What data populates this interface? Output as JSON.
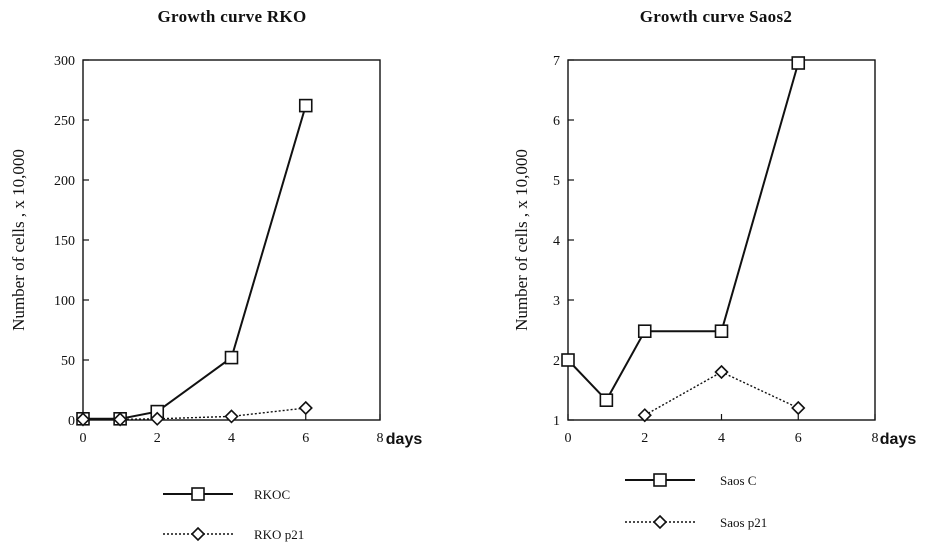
{
  "chart_data": [
    {
      "type": "line",
      "title": "Growth curve RKO",
      "xlabel": "days",
      "ylabel": "Number of cells , x 10,000",
      "xlim": [
        0,
        8
      ],
      "ylim": [
        0,
        300
      ],
      "xticks": [
        0,
        2,
        4,
        6,
        8
      ],
      "yticks": [
        0,
        50,
        100,
        150,
        200,
        250,
        300
      ],
      "grid": false,
      "legend_position": "bottom",
      "series": [
        {
          "name": "RKOC",
          "marker": "square",
          "line": "solid",
          "color": "#111111",
          "x": [
            0,
            1,
            2,
            4,
            6
          ],
          "y": [
            1,
            1,
            7,
            52,
            262
          ]
        },
        {
          "name": "RKO p21",
          "marker": "diamond",
          "line": "dotted",
          "color": "#111111",
          "x": [
            0,
            1,
            2,
            4,
            6
          ],
          "y": [
            0.5,
            0.5,
            1,
            3,
            10
          ]
        }
      ]
    },
    {
      "type": "line",
      "title": "Growth curve Saos2",
      "xlabel": "days",
      "ylabel": "Number of cells , x 10,000",
      "xlim": [
        0,
        8
      ],
      "ylim": [
        1,
        7
      ],
      "xticks": [
        0,
        2,
        4,
        6,
        8
      ],
      "yticks": [
        1,
        2,
        3,
        4,
        5,
        6,
        7
      ],
      "grid": false,
      "legend_position": "bottom",
      "series": [
        {
          "name": "Saos C",
          "marker": "square",
          "line": "solid",
          "color": "#111111",
          "x": [
            0,
            1,
            2,
            4,
            6
          ],
          "y": [
            2.0,
            1.33,
            2.48,
            2.48,
            6.95
          ]
        },
        {
          "name": "Saos p21",
          "marker": "diamond",
          "line": "dotted",
          "color": "#111111",
          "x": [
            2,
            4,
            6
          ],
          "y": [
            1.08,
            1.8,
            1.2
          ]
        }
      ]
    }
  ]
}
